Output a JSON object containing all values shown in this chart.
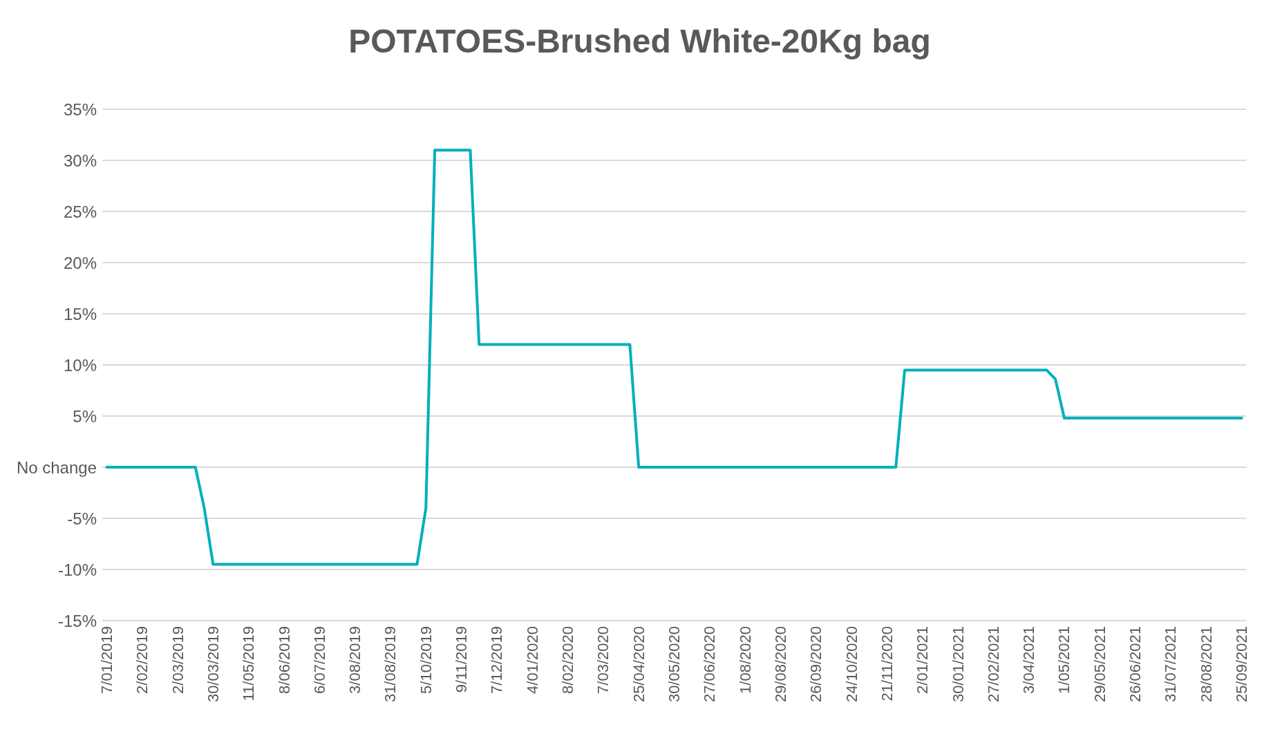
{
  "chart_data": {
    "type": "line",
    "title": "POTATOES-Brushed White-20Kg bag",
    "categories": [
      "7/01/2019",
      null,
      null,
      null,
      "2/02/2019",
      null,
      null,
      null,
      "2/03/2019",
      null,
      null,
      null,
      "30/03/2019",
      null,
      null,
      null,
      "11/05/2019",
      null,
      null,
      null,
      "8/06/2019",
      null,
      null,
      null,
      "6/07/2019",
      null,
      null,
      null,
      "3/08/2019",
      null,
      null,
      null,
      "31/08/2019",
      null,
      null,
      null,
      "5/10/2019",
      null,
      null,
      null,
      "9/11/2019",
      null,
      null,
      null,
      "7/12/2019",
      null,
      null,
      null,
      "4/01/2020",
      null,
      null,
      null,
      "8/02/2020",
      null,
      null,
      null,
      "7/03/2020",
      null,
      null,
      null,
      "25/04/2020",
      null,
      null,
      null,
      "30/05/2020",
      null,
      null,
      null,
      "27/06/2020",
      null,
      null,
      null,
      "1/08/2020",
      null,
      null,
      null,
      "29/08/2020",
      null,
      null,
      null,
      "26/09/2020",
      null,
      null,
      null,
      "24/10/2020",
      null,
      null,
      null,
      "21/11/2020",
      null,
      null,
      null,
      "2/01/2021",
      null,
      null,
      null,
      "30/01/2021",
      null,
      null,
      null,
      "27/02/2021",
      null,
      null,
      null,
      "3/04/2021",
      null,
      null,
      null,
      "1/05/2021",
      null,
      null,
      null,
      "29/05/2021",
      null,
      null,
      null,
      "26/06/2021",
      null,
      null,
      null,
      "31/07/2021",
      null,
      null,
      null,
      "28/08/2021",
      null,
      null,
      null,
      "25/09/2021"
    ],
    "series": [
      {
        "color": "#00b0b9",
        "values": [
          0,
          0,
          0,
          0,
          0,
          0,
          0,
          0,
          0,
          0,
          0,
          -4,
          -9.5,
          -9.5,
          -9.5,
          -9.5,
          -9.5,
          -9.5,
          -9.5,
          -9.5,
          -9.5,
          -9.5,
          -9.5,
          -9.5,
          -9.5,
          -9.5,
          -9.5,
          -9.5,
          -9.5,
          -9.5,
          -9.5,
          -9.5,
          -9.5,
          -9.5,
          -9.5,
          -9.5,
          -4,
          31,
          31,
          31,
          31,
          31,
          12,
          12,
          12,
          12,
          12,
          12,
          12,
          12,
          12,
          12,
          12,
          12,
          12,
          12,
          12,
          12,
          12,
          12,
          0,
          0,
          0,
          0,
          0,
          0,
          0,
          0,
          0,
          0,
          0,
          0,
          0,
          0,
          0,
          0,
          0,
          0,
          0,
          0,
          0,
          0,
          0,
          0,
          0,
          0,
          0,
          0,
          0,
          0,
          9.5,
          9.5,
          9.5,
          9.5,
          9.5,
          9.5,
          9.5,
          9.5,
          9.5,
          9.5,
          9.5,
          9.5,
          9.5,
          9.5,
          9.5,
          9.5,
          9.5,
          8.6,
          4.8,
          4.8,
          4.8,
          4.8,
          4.8,
          4.8,
          4.8,
          4.8,
          4.8,
          4.8,
          4.8,
          4.8,
          4.8,
          4.8,
          4.8,
          4.8,
          4.8,
          4.8,
          4.8,
          4.8,
          4.8
        ]
      }
    ],
    "ylim": [
      -15,
      35
    ],
    "yticks": [
      {
        "value": -15,
        "label": "-15%"
      },
      {
        "value": -10,
        "label": "-10%"
      },
      {
        "value": -5,
        "label": "-5%"
      },
      {
        "value": 0,
        "label": "No change"
      },
      {
        "value": 5,
        "label": "5%"
      },
      {
        "value": 10,
        "label": "10%"
      },
      {
        "value": 15,
        "label": "15%"
      },
      {
        "value": 20,
        "label": "20%"
      },
      {
        "value": 25,
        "label": "25%"
      },
      {
        "value": 30,
        "label": "30%"
      },
      {
        "value": 35,
        "label": "35%"
      }
    ],
    "grid": "y",
    "marker": "none",
    "line_style": "solid"
  }
}
